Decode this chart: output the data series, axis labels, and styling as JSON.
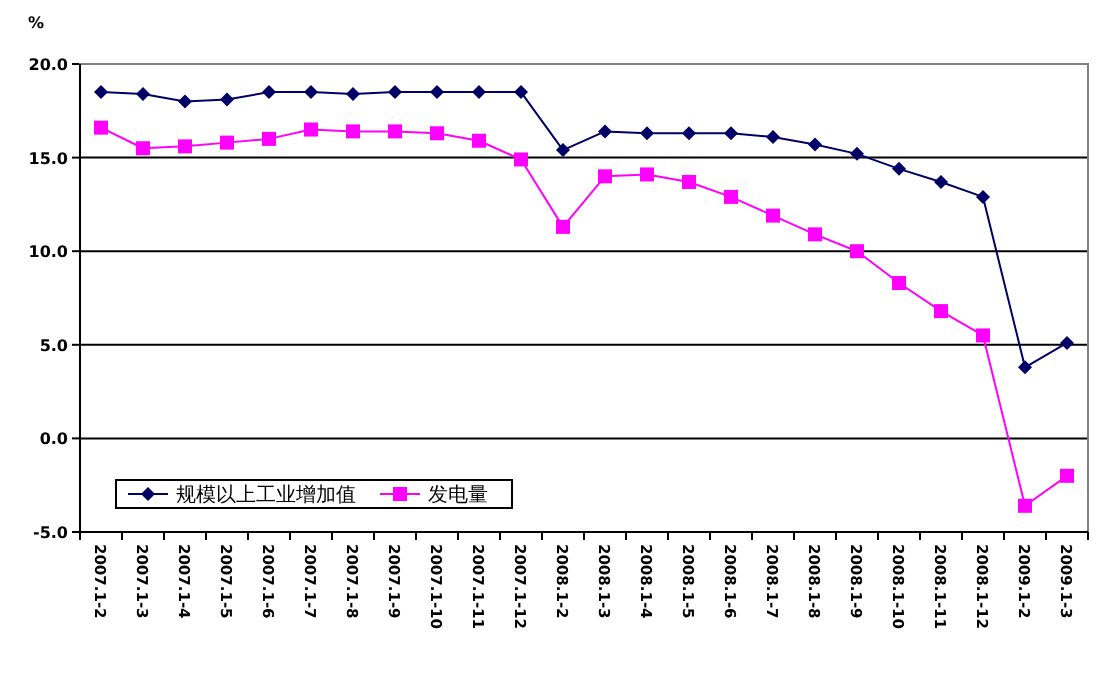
{
  "chart_data": {
    "type": "line",
    "ylabel": "%",
    "categories": [
      "2007.1-2",
      "2007.1-3",
      "2007.1-4",
      "2007.1-5",
      "2007.1-6",
      "2007.1-7",
      "2007.1-8",
      "2007.1-9",
      "2007.1-10",
      "2007.1-11",
      "2007.1-12",
      "2008.1-2",
      "2008.1-3",
      "2008.1-4",
      "2008.1-5",
      "2008.1-6",
      "2008.1-7",
      "2008.1-8",
      "2008.1-9",
      "2008.1-10",
      "2008.1-11",
      "2008.1-12",
      "2009.1-2",
      "2009.1-3"
    ],
    "series": [
      {
        "name": "规模以上工业增加值",
        "color": "#000066",
        "marker": "diamond",
        "values": [
          18.5,
          18.4,
          18.0,
          18.1,
          18.5,
          18.5,
          18.4,
          18.5,
          18.5,
          18.5,
          18.5,
          15.4,
          16.4,
          16.3,
          16.3,
          16.3,
          16.1,
          15.7,
          15.2,
          14.4,
          13.7,
          12.9,
          3.8,
          5.1
        ]
      },
      {
        "name": "发电量",
        "color": "#ff00ff",
        "marker": "square",
        "values": [
          16.6,
          15.5,
          15.6,
          15.8,
          16.0,
          16.5,
          16.4,
          16.4,
          16.3,
          15.9,
          14.9,
          11.3,
          14.0,
          14.1,
          13.7,
          12.9,
          11.9,
          10.9,
          10.0,
          8.3,
          6.8,
          5.5,
          -3.6,
          -2.0
        ]
      }
    ],
    "ylim": [
      -5,
      20
    ],
    "yticks": [
      {
        "value": -5,
        "label": "-5.0"
      },
      {
        "value": 0,
        "label": "0.0"
      },
      {
        "value": 5,
        "label": "5.0"
      },
      {
        "value": 10,
        "label": "10.0"
      },
      {
        "value": 15,
        "label": "15.0"
      },
      {
        "value": 20,
        "label": "20.0"
      }
    ],
    "grid": "y",
    "legend": "bottom left",
    "line_style": "solid"
  }
}
